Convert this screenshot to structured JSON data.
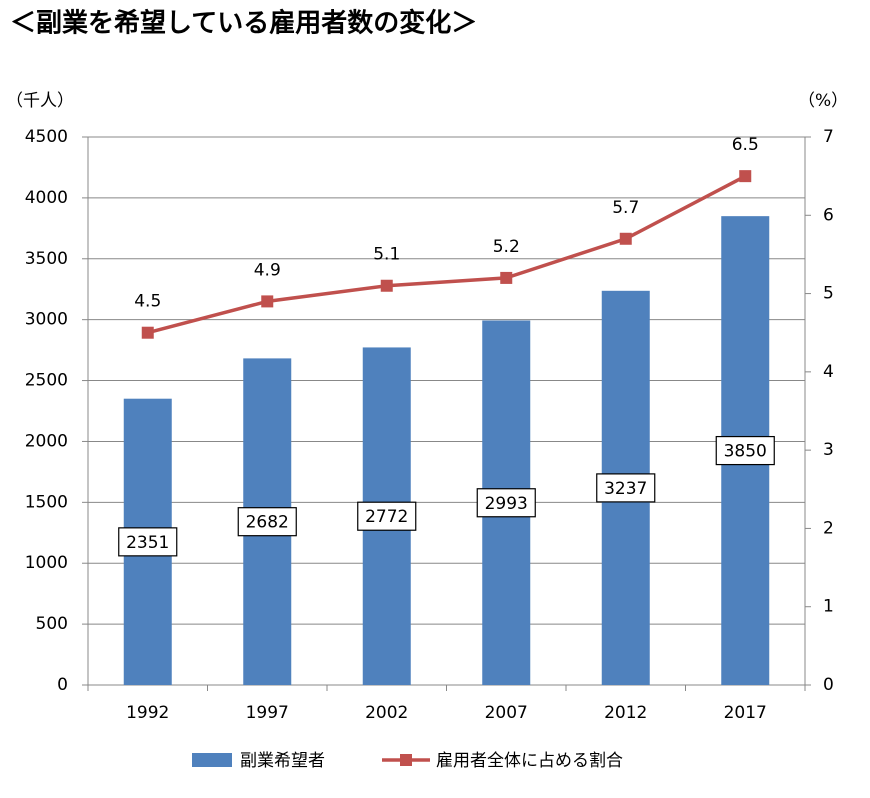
{
  "chart_data": {
    "type": "bar",
    "title": "＜副業を希望している雇用者数の変化＞",
    "y_label": "（千人）",
    "y2_label": "（%）",
    "categories": [
      "1992",
      "1997",
      "2002",
      "2007",
      "2012",
      "2017"
    ],
    "series": [
      {
        "name": "副業希望者",
        "type": "bar",
        "color": "#4f81bd",
        "values": [
          2351,
          2682,
          2772,
          2993,
          3237,
          3850
        ]
      },
      {
        "name": "雇用者全体に占める割合",
        "type": "line",
        "axis": "y2",
        "color": "#c0504d",
        "values": [
          4.5,
          4.9,
          5.1,
          5.2,
          5.7,
          6.5
        ]
      }
    ],
    "ylim": [
      0,
      4500
    ],
    "yticks": [
      0,
      500,
      1000,
      1500,
      2000,
      2500,
      3000,
      3500,
      4000,
      4500
    ],
    "y2lim": [
      0,
      7
    ],
    "y2ticks": [
      0,
      1,
      2,
      3,
      4,
      5,
      6,
      7
    ],
    "grid": true,
    "legend": "bottom"
  }
}
